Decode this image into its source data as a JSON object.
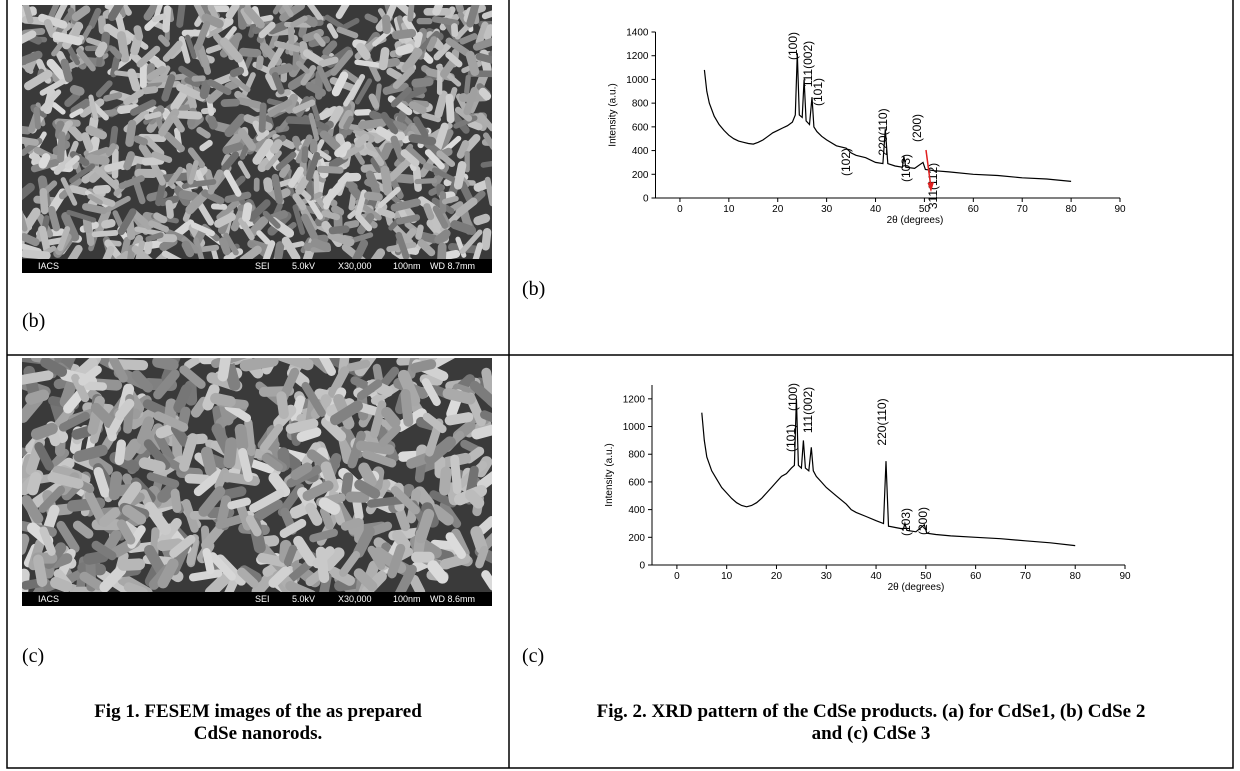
{
  "chart_data": [
    {
      "type": "line",
      "xlabel": "2θ (degrees)",
      "ylabel": "Intensity (a.u.)",
      "color": "#000000",
      "arrow_color": "#e02020",
      "xlim": [
        -5,
        90
      ],
      "ylim": [
        0,
        1400
      ],
      "xticks": [
        0,
        10,
        20,
        30,
        40,
        50,
        60,
        70,
        80,
        90
      ],
      "yticks": [
        0,
        200,
        400,
        600,
        800,
        1000,
        1200,
        1400
      ],
      "x": [
        5,
        5.5,
        6,
        7,
        8,
        9,
        10,
        11,
        12,
        13,
        14,
        15,
        16,
        17,
        18,
        19,
        20,
        21,
        22,
        23,
        23.6,
        24,
        24.4,
        25,
        25.4,
        25.8,
        26.5,
        27,
        27.4,
        28,
        29,
        30,
        32,
        34,
        35,
        36,
        38,
        40,
        41.5,
        42,
        42.5,
        44,
        45.5,
        45.8,
        46.2,
        48,
        49.7,
        50.2,
        52,
        55,
        60,
        65,
        70,
        75,
        80
      ],
      "values": [
        1080,
        900,
        800,
        690,
        620,
        570,
        530,
        500,
        480,
        470,
        460,
        455,
        470,
        490,
        520,
        550,
        570,
        590,
        610,
        640,
        700,
        1220,
        700,
        680,
        1000,
        650,
        620,
        850,
        600,
        560,
        520,
        490,
        440,
        420,
        380,
        360,
        340,
        300,
        290,
        580,
        290,
        270,
        260,
        350,
        260,
        250,
        300,
        240,
        230,
        220,
        200,
        190,
        170,
        160,
        140
      ],
      "annotations": [
        "(100)",
        "111(002)",
        "(101)",
        "(102)",
        "220(110)",
        "(103)",
        "(200)",
        "311(112)"
      ]
    },
    {
      "type": "line",
      "xlabel": "2θ (degrees)",
      "ylabel": "Intensity (a.u.)",
      "color": "#000000",
      "xlim": [
        -5,
        90
      ],
      "ylim": [
        0,
        1300
      ],
      "xticks": [
        0,
        10,
        20,
        30,
        40,
        50,
        60,
        70,
        80,
        90
      ],
      "yticks": [
        0,
        200,
        400,
        600,
        800,
        1000,
        1200
      ],
      "x": [
        5,
        5.5,
        6,
        7,
        8,
        9,
        10,
        11,
        12,
        13,
        14,
        15,
        16,
        17,
        18,
        19,
        20,
        21,
        22,
        23,
        23.6,
        24,
        24.4,
        25,
        25.4,
        25.8,
        26.5,
        27,
        27.4,
        28,
        29,
        30,
        32,
        34,
        35,
        36,
        38,
        40,
        41.5,
        42,
        42.5,
        44,
        45.5,
        45.8,
        46.2,
        48,
        49.7,
        50.2,
        52,
        55,
        60,
        65,
        70,
        75,
        80
      ],
      "values": [
        1100,
        900,
        780,
        680,
        620,
        560,
        520,
        480,
        450,
        430,
        420,
        430,
        450,
        480,
        520,
        560,
        600,
        640,
        660,
        700,
        720,
        1200,
        720,
        700,
        900,
        700,
        680,
        850,
        680,
        640,
        600,
        560,
        500,
        440,
        400,
        380,
        350,
        320,
        300,
        750,
        280,
        270,
        260,
        300,
        250,
        240,
        290,
        230,
        220,
        210,
        200,
        190,
        175,
        160,
        140
      ],
      "annotations": [
        "(100)",
        "111(002)",
        "(101)",
        "220(110)",
        "(103)",
        "(200)"
      ]
    }
  ],
  "sem_images": [
    {
      "info": [
        "IACS",
        "SEI",
        "5.0kV",
        "X30,000",
        "100nm",
        "WD 8.7mm"
      ]
    },
    {
      "info": [
        "IACS",
        "SEI",
        "5.0kV",
        "X30,000",
        "100nm",
        "WD 8.6mm"
      ]
    }
  ],
  "panel_labels": {
    "left": [
      "(b)",
      "(c)"
    ],
    "right": [
      "(b)",
      "(c)"
    ]
  },
  "captions": [
    "Fig 1. FESEM images of the as prepared|CdSe nanorods.",
    "Fig. 2. XRD pattern of the CdSe products. (a) for CdSe1, (b) CdSe 2|and (c) CdSe 3"
  ]
}
